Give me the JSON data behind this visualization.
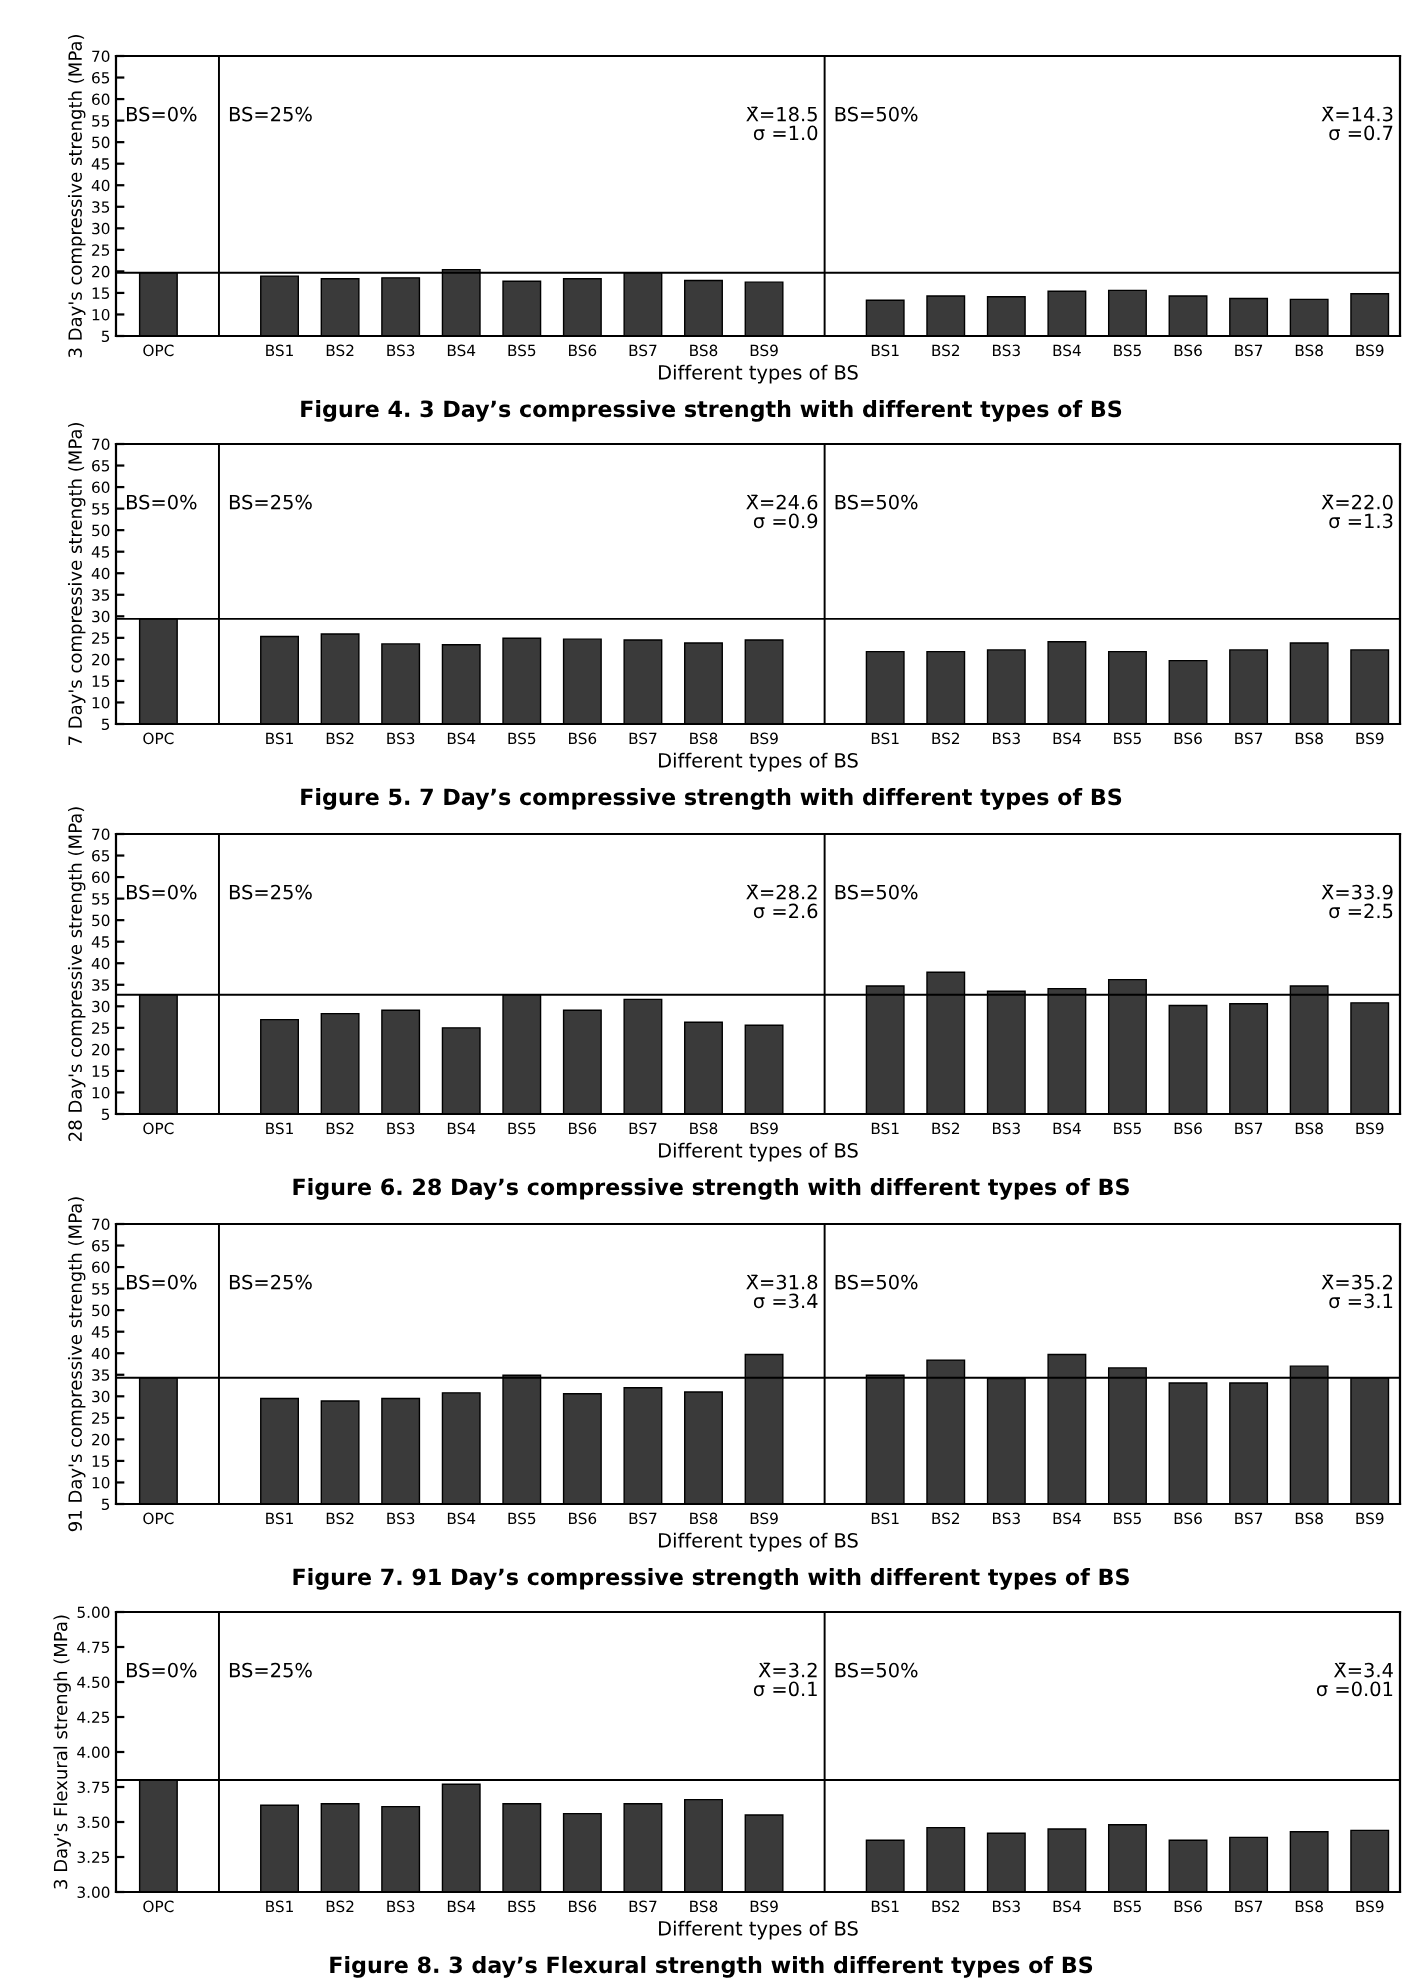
{
  "chart_data": [
    {
      "type": "bar",
      "title": "Figure 4. 3 Day’s compressive strength with different types of BS",
      "xlabel": "Different types of BS",
      "ylabel": "3 Day's compressive strength (MPa)",
      "categories": [
        "OPC",
        null,
        "BS1",
        "BS2",
        "BS3",
        "BS4",
        "BS5",
        "BS6",
        "BS7",
        "BS8",
        "BS9",
        null,
        "BS1",
        "BS2",
        "BS3",
        "BS4",
        "BS5",
        "BS6",
        "BS7",
        "BS8",
        "BS9"
      ],
      "values": [
        19.7,
        null,
        18.9,
        18.3,
        18.5,
        20.4,
        17.7,
        18.3,
        19.7,
        17.9,
        17.5,
        null,
        13.3,
        14.3,
        14.1,
        15.4,
        15.6,
        14.3,
        13.7,
        13.5,
        14.8
      ],
      "color": "#3a3a3a",
      "ylim": [
        5,
        70
      ],
      "yticks": [
        5,
        10,
        15,
        20,
        25,
        30,
        35,
        40,
        45,
        50,
        55,
        60,
        65,
        70
      ],
      "ref_lines": [
        {
          "axis": "y",
          "value": 19.7
        }
      ],
      "annotations": [
        "BS=0%",
        "BS=25%",
        "X̄=18.5\nσ =1.0",
        "BS=50%",
        "X̄=14.3\nσ =0.7"
      ]
    },
    {
      "type": "bar",
      "title": "Figure 5. 7 Day’s compressive strength with different types of BS",
      "xlabel": "Different types of BS",
      "ylabel": "7 Day's compressive strength (MPa)",
      "categories": [
        "OPC",
        null,
        "BS1",
        "BS2",
        "BS3",
        "BS4",
        "BS5",
        "BS6",
        "BS7",
        "BS8",
        "BS9",
        null,
        "BS1",
        "BS2",
        "BS3",
        "BS4",
        "BS5",
        "BS6",
        "BS7",
        "BS8",
        "BS9"
      ],
      "values": [
        29.4,
        null,
        25.3,
        25.9,
        23.6,
        23.4,
        24.9,
        24.7,
        24.5,
        23.8,
        24.5,
        null,
        21.8,
        21.8,
        22.2,
        24.1,
        21.8,
        19.7,
        22.2,
        23.8,
        22.2
      ],
      "color": "#3a3a3a",
      "ylim": [
        5,
        70
      ],
      "yticks": [
        5,
        10,
        15,
        20,
        25,
        30,
        35,
        40,
        45,
        50,
        55,
        60,
        65,
        70
      ],
      "ref_lines": [
        {
          "axis": "y",
          "value": 29.4
        }
      ],
      "annotations": [
        "BS=0%",
        "BS=25%",
        "X̄=24.6\nσ =0.9",
        "BS=50%",
        "X̄=22.0\nσ =1.3"
      ]
    },
    {
      "type": "bar",
      "title": "Figure 6. 28 Day’s compressive strength with different types of BS",
      "xlabel": "Different types of BS",
      "ylabel": "28 Day's compressive strength (MPa)",
      "categories": [
        "OPC",
        null,
        "BS1",
        "BS2",
        "BS3",
        "BS4",
        "BS5",
        "BS6",
        "BS7",
        "BS8",
        "BS9",
        null,
        "BS1",
        "BS2",
        "BS3",
        "BS4",
        "BS5",
        "BS6",
        "BS7",
        "BS8",
        "BS9"
      ],
      "values": [
        32.7,
        null,
        26.9,
        28.3,
        29.1,
        25.0,
        32.7,
        29.1,
        31.6,
        26.3,
        25.6,
        null,
        34.7,
        37.9,
        33.5,
        34.1,
        36.2,
        30.2,
        30.6,
        34.7,
        30.8
      ],
      "color": "#3a3a3a",
      "ylim": [
        5,
        70
      ],
      "yticks": [
        5,
        10,
        15,
        20,
        25,
        30,
        35,
        40,
        45,
        50,
        55,
        60,
        65,
        70
      ],
      "ref_lines": [
        {
          "axis": "y",
          "value": 32.7
        }
      ],
      "annotations": [
        "BS=0%",
        "BS=25%",
        "X̄=28.2\nσ =2.6",
        "BS=50%",
        "X̄=33.9\nσ =2.5"
      ]
    },
    {
      "type": "bar",
      "title": "Figure 7. 91 Day’s compressive strength with different types of BS",
      "xlabel": "Different types of BS",
      "ylabel": "91 Day's compressive strength (MPa)",
      "categories": [
        "OPC",
        null,
        "BS1",
        "BS2",
        "BS3",
        "BS4",
        "BS5",
        "BS6",
        "BS7",
        "BS8",
        "BS9",
        null,
        "BS1",
        "BS2",
        "BS3",
        "BS4",
        "BS5",
        "BS6",
        "BS7",
        "BS8",
        "BS9"
      ],
      "values": [
        34.3,
        null,
        29.5,
        28.9,
        29.5,
        30.8,
        34.9,
        30.6,
        32.0,
        31.0,
        39.7,
        null,
        34.9,
        38.4,
        34.1,
        39.7,
        36.6,
        33.1,
        33.1,
        37.0,
        34.3
      ],
      "color": "#3a3a3a",
      "ylim": [
        5,
        70
      ],
      "yticks": [
        5,
        10,
        15,
        20,
        25,
        30,
        35,
        40,
        45,
        50,
        55,
        60,
        65,
        70
      ],
      "ref_lines": [
        {
          "axis": "y",
          "value": 34.3
        }
      ],
      "annotations": [
        "BS=0%",
        "BS=25%",
        "X̄=31.8\nσ =3.4",
        "BS=50%",
        "X̄=35.2\nσ =3.1"
      ]
    },
    {
      "type": "bar",
      "title": "Figure 8. 3 day’s Flexural strength with different types of BS",
      "xlabel": "Different types of BS",
      "ylabel": "3 Day's Flexural strengh (MPa)",
      "categories": [
        "OPC",
        null,
        "BS1",
        "BS2",
        "BS3",
        "BS4",
        "BS5",
        "BS6",
        "BS7",
        "BS8",
        "BS9",
        null,
        "BS1",
        "BS2",
        "BS3",
        "BS4",
        "BS5",
        "BS6",
        "BS7",
        "BS8",
        "BS9"
      ],
      "values": [
        3.8,
        null,
        3.62,
        3.63,
        3.61,
        3.77,
        3.63,
        3.56,
        3.63,
        3.66,
        3.55,
        null,
        3.37,
        3.46,
        3.42,
        3.45,
        3.48,
        3.37,
        3.39,
        3.43,
        3.44
      ],
      "color": "#3a3a3a",
      "ylim": [
        3.0,
        5.0
      ],
      "yticks": [
        {
          "value": 3.0,
          "label": "3.00"
        },
        {
          "value": 3.25,
          "label": "3.25"
        },
        {
          "value": 3.5,
          "label": "3.50"
        },
        {
          "value": 3.75,
          "label": "3.75"
        },
        {
          "value": 4.0,
          "label": "4.00"
        },
        {
          "value": 4.25,
          "label": "4.25"
        },
        {
          "value": 4.5,
          "label": "4.50"
        },
        {
          "value": 4.75,
          "label": "4.75"
        },
        {
          "value": 5.0,
          "label": "5.00"
        }
      ],
      "ref_lines": [
        {
          "axis": "y",
          "value": 3.8
        }
      ],
      "annotations": [
        "BS=0%",
        "BS=25%",
        "X̄=3.2\nσ =0.1",
        "BS=50%",
        "X̄=3.4\nσ =0.01"
      ]
    }
  ]
}
